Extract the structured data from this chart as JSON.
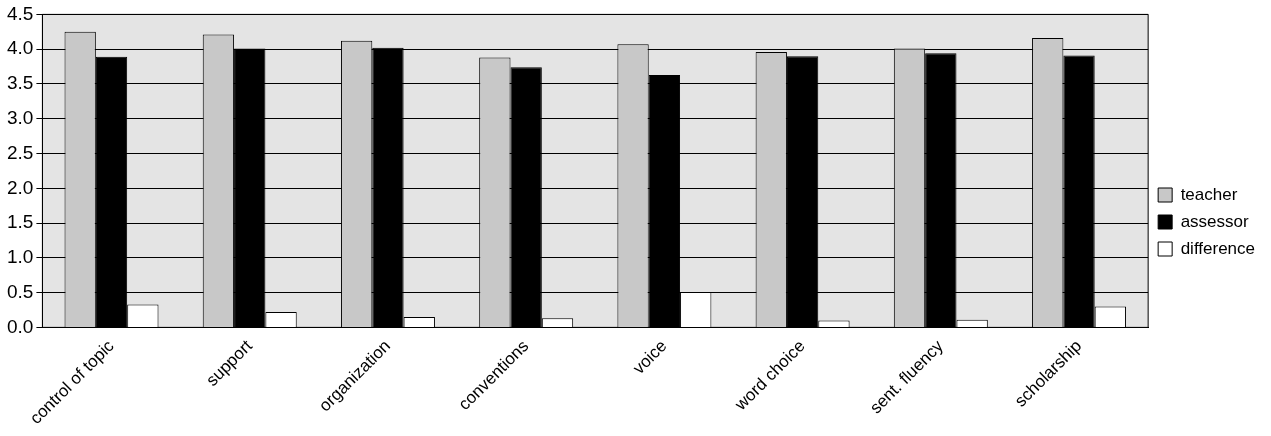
{
  "chart_data": {
    "type": "bar",
    "categories": [
      "control of topic",
      "support",
      "organization",
      "conventions",
      "voice",
      "word choice",
      "sent. fluency",
      "scholarship"
    ],
    "series": [
      {
        "name": "teacher",
        "color": "#c8c8c8",
        "values": [
          4.25,
          4.21,
          4.12,
          3.88,
          4.07,
          3.96,
          4.01,
          4.16
        ]
      },
      {
        "name": "assessor",
        "color": "#000000",
        "values": [
          3.89,
          4.01,
          4.02,
          3.74,
          3.63,
          3.9,
          3.94,
          3.91
        ]
      },
      {
        "name": "difference",
        "color": "#ffffff",
        "values": [
          0.33,
          0.22,
          0.15,
          0.13,
          0.51,
          0.1,
          0.11,
          0.3
        ]
      }
    ],
    "ylim": [
      0,
      4.5
    ],
    "yticks": [
      {
        "value": 0,
        "label": "0.0"
      },
      {
        "value": 0.5,
        "label": "0.5"
      },
      {
        "value": 1,
        "label": "1.0"
      },
      {
        "value": 1.5,
        "label": "1.5"
      },
      {
        "value": 2,
        "label": "2.0"
      },
      {
        "value": 2.5,
        "label": "2.5"
      },
      {
        "value": 3,
        "label": "3.0"
      },
      {
        "value": 3.5,
        "label": "3.5"
      },
      {
        "value": 4,
        "label": "4.0"
      },
      {
        "value": 4.5,
        "label": "4.5"
      }
    ],
    "grid": "y",
    "legend": "right"
  }
}
